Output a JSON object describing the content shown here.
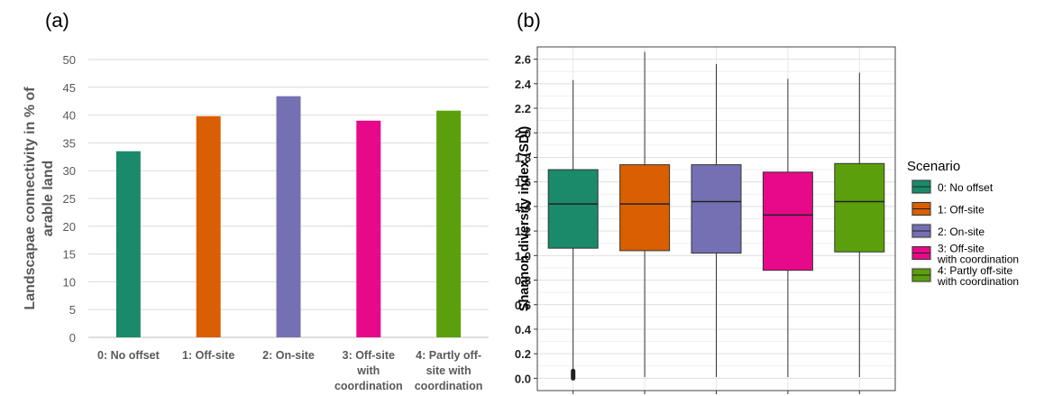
{
  "chart_data": [
    {
      "panel_label": "(a)",
      "type": "bar",
      "ylabel": "Landscapae connectivity in % of arable land",
      "ylim": [
        0,
        50
      ],
      "yticks": [
        0,
        5,
        10,
        15,
        20,
        25,
        30,
        35,
        40,
        45,
        50
      ],
      "grid": true,
      "categories": [
        [
          "0: No offset"
        ],
        [
          "1: Off-site"
        ],
        [
          "2: On-site"
        ],
        [
          "3: Off-site",
          "with",
          "coordination"
        ],
        [
          "4: Partly off-",
          "site with",
          "coordination"
        ]
      ],
      "values": [
        33.5,
        39.8,
        43.4,
        39.0,
        40.8
      ],
      "colors": [
        "#1b8a6b",
        "#d95f02",
        "#7570b3",
        "#e7098a",
        "#5ba00c"
      ]
    },
    {
      "panel_label": "(b)",
      "type": "boxplot",
      "ylabel": "Shannon diversity index (SDI)",
      "ylim": [
        -0.1,
        2.7
      ],
      "yticks": [
        "0.0",
        "0.2",
        "0.4",
        "0.6",
        "0.8",
        "1.0",
        "1.2",
        "1.4",
        "1.6",
        "1.8",
        "2.0",
        "2.2",
        "2.4",
        "2.6"
      ],
      "grid": true,
      "legend_title": "Scenario",
      "legend_position": "right",
      "series": [
        {
          "name": "0: No offset",
          "legend_lines": [
            "0: No offset"
          ],
          "min": 0.07,
          "q1": 1.06,
          "median": 1.42,
          "q3": 1.7,
          "max": 2.43,
          "outliers_from": 0.0,
          "outliers_to": 0.06,
          "color": "#1b8a6b"
        },
        {
          "name": "1: Off-site",
          "legend_lines": [
            "1: Off-site"
          ],
          "min": 0.01,
          "q1": 1.04,
          "median": 1.42,
          "q3": 1.74,
          "max": 2.66,
          "color": "#d95f02"
        },
        {
          "name": "2: On-site",
          "legend_lines": [
            "2: On-site"
          ],
          "min": 0.01,
          "q1": 1.02,
          "median": 1.44,
          "q3": 1.74,
          "max": 2.56,
          "color": "#7570b3"
        },
        {
          "name": "3: Off-site with coordination",
          "legend_lines": [
            "3: Off-site",
            "with coordination"
          ],
          "min": 0.01,
          "q1": 0.88,
          "median": 1.33,
          "q3": 1.68,
          "max": 2.44,
          "color": "#e7098a"
        },
        {
          "name": "4: Partly off-site with coordination",
          "legend_lines": [
            "4: Partly off-site",
            "with coordination"
          ],
          "min": 0.01,
          "q1": 1.03,
          "median": 1.44,
          "q3": 1.75,
          "max": 2.49,
          "color": "#5ba00c"
        }
      ]
    }
  ]
}
